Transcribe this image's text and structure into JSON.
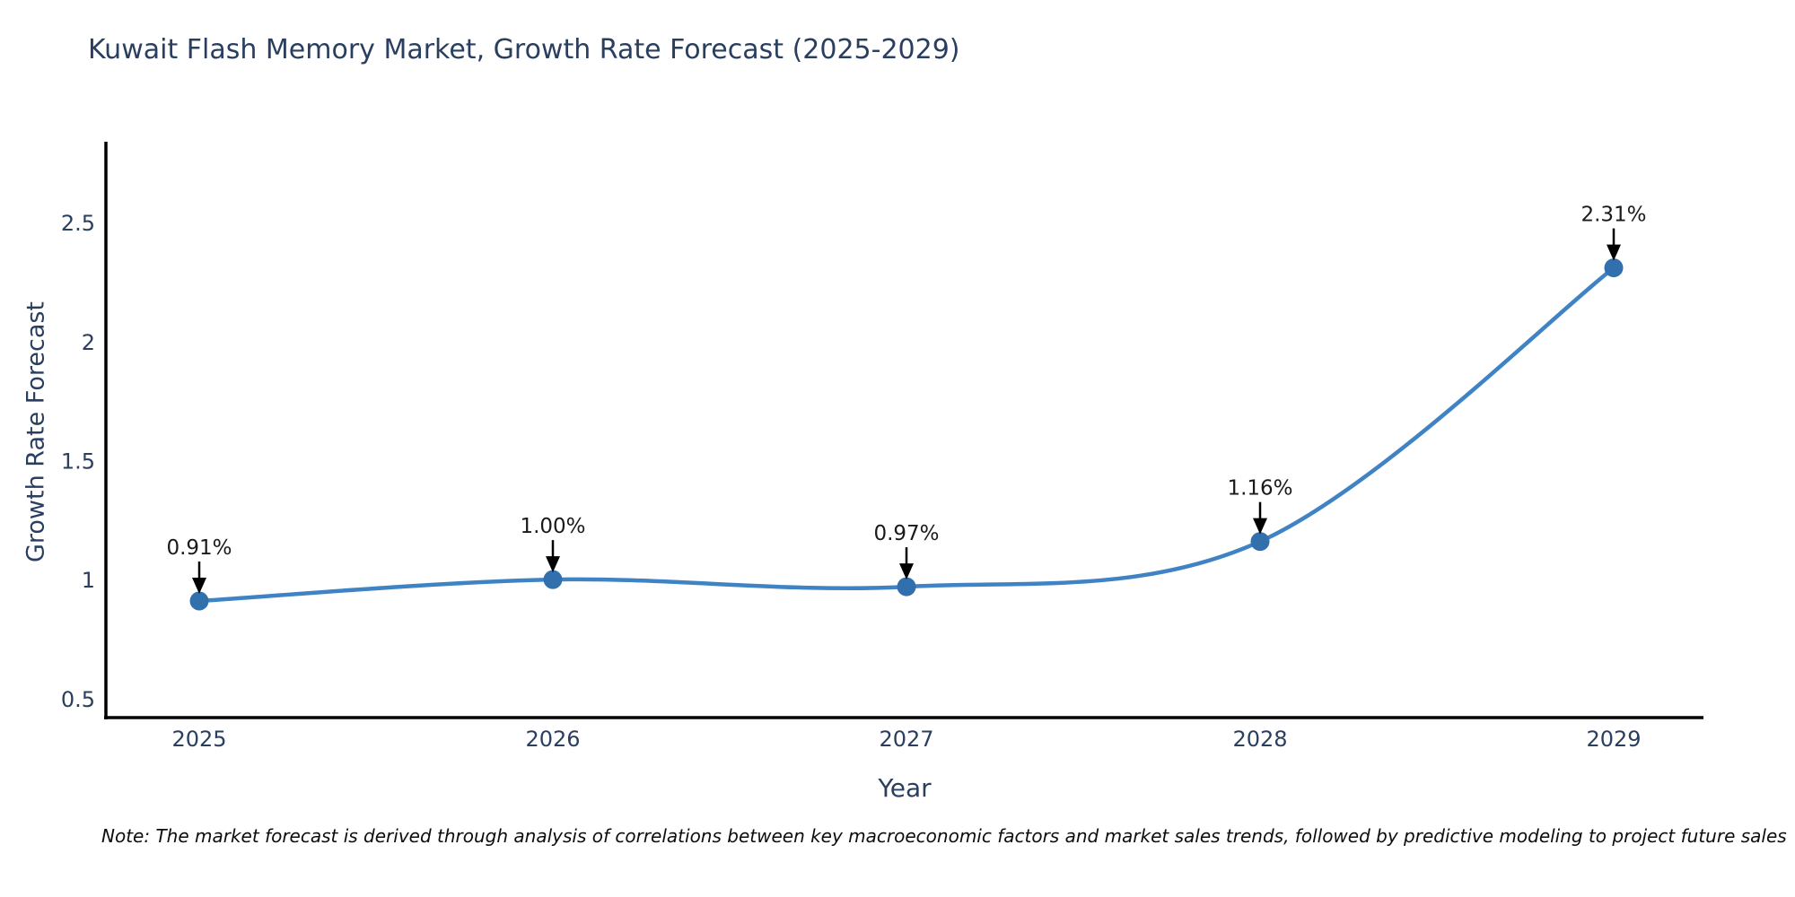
{
  "title": "Kuwait Flash Memory Market, Growth Rate Forecast (2025-2029)",
  "note": "Note: The market forecast is derived through analysis of correlations between key macroeconomic factors and market sales trends, followed by predictive modeling to project future sales",
  "chart_data": {
    "type": "line",
    "title": "Kuwait Flash Memory Market, Growth Rate Forecast (2025-2029)",
    "xlabel": "Year",
    "ylabel": "Growth Rate Forecast",
    "categories": [
      "2025",
      "2026",
      "2027",
      "2028",
      "2029"
    ],
    "values": [
      0.91,
      1.0,
      0.97,
      1.16,
      2.31
    ],
    "data_labels": [
      "0.91%",
      "1.00%",
      "0.97%",
      "1.16%",
      "2.31%"
    ],
    "yticks": [
      0.5,
      1,
      1.5,
      2,
      2.5
    ],
    "ytick_labels": [
      "0.5",
      "1",
      "1.5",
      "2",
      "2.5"
    ],
    "ylim": [
      0.42,
      2.84
    ],
    "grid": false,
    "legend": "none",
    "line_shape": "spline",
    "colors": {
      "line": "#3f83c4",
      "marker": "#3170ad",
      "axis": "#000000",
      "tick_text": "#2a3f5f",
      "annotation_text": "#1a1a1a",
      "annotation_arrow": "#000000",
      "title_text": "#2a3f5f",
      "background": "#ffffff"
    }
  }
}
